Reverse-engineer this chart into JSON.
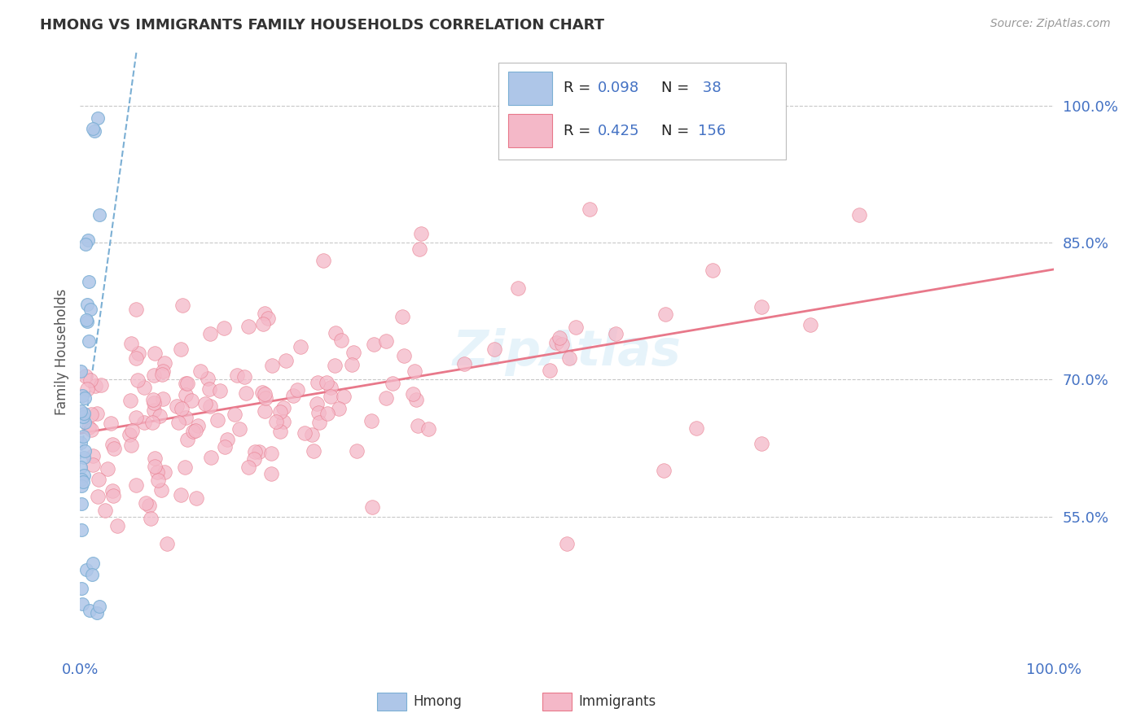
{
  "title": "HMONG VS IMMIGRANTS FAMILY HOUSEHOLDS CORRELATION CHART",
  "source": "Source: ZipAtlas.com",
  "ylabel": "Family Households",
  "xlim": [
    0.0,
    1.0
  ],
  "ylim": [
    0.4,
    1.06
  ],
  "yticks": [
    0.55,
    0.7,
    0.85,
    1.0
  ],
  "ytick_labels": [
    "55.0%",
    "70.0%",
    "85.0%",
    "100.0%"
  ],
  "xticks": [
    0.0,
    1.0
  ],
  "xtick_labels": [
    "0.0%",
    "100.0%"
  ],
  "hmong_color": "#aec6e8",
  "immigrants_color": "#f4b8c8",
  "hmong_edge_color": "#7bafd4",
  "immigrants_line_color": "#e8788a",
  "hmong_line_color": "#7bafd4",
  "hmong_R": 0.098,
  "hmong_N": 38,
  "immigrants_R": 0.425,
  "immigrants_N": 156,
  "watermark": "ZipAtlas",
  "watermark_color": "#add8f0",
  "background_color": "#ffffff",
  "grid_color": "#c8c8c8",
  "tick_color": "#4472c4",
  "title_color": "#333333",
  "seed": 42
}
